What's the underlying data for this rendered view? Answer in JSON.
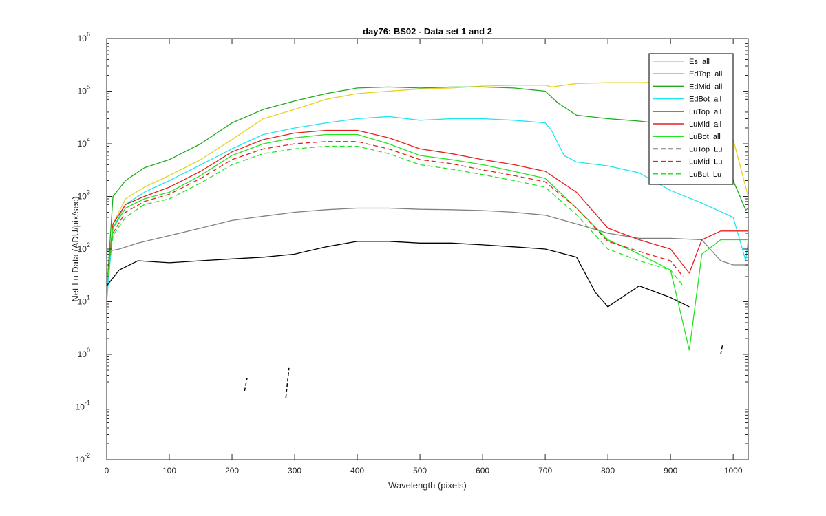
{
  "chart_data": {
    "type": "line",
    "title": "day76: BS02 - Data set 1 and 2",
    "xlabel": "Wavelength (pixels)",
    "ylabel": "Net Lu Data (ADU/pix/sec)",
    "xlim": [
      0,
      1024
    ],
    "ylim": [
      0.01,
      1000000
    ],
    "yscale": "log",
    "grid": false,
    "legend_position": "top-right",
    "x_ticks": [
      "0",
      "100",
      "200",
      "300",
      "400",
      "500",
      "600",
      "700",
      "800",
      "900",
      "1000"
    ],
    "y_ticks": [
      {
        "base": "10",
        "exp": "-2"
      },
      {
        "base": "10",
        "exp": "-1"
      },
      {
        "base": "10",
        "exp": "0"
      },
      {
        "base": "10",
        "exp": "1"
      },
      {
        "base": "10",
        "exp": "2"
      },
      {
        "base": "10",
        "exp": "3"
      },
      {
        "base": "10",
        "exp": "4"
      },
      {
        "base": "10",
        "exp": "5"
      },
      {
        "base": "10",
        "exp": "6"
      }
    ],
    "series": [
      {
        "name": "Es  all",
        "color": "#e6d21f",
        "dash": "solid",
        "x": [
          0,
          10,
          30,
          60,
          100,
          150,
          200,
          250,
          300,
          350,
          400,
          450,
          500,
          550,
          600,
          650,
          700,
          710,
          750,
          800,
          850,
          900,
          950,
          1000,
          1024
        ],
        "y": [
          10,
          300,
          900,
          1500,
          2500,
          5000,
          12000,
          30000,
          45000,
          70000,
          90000,
          100000,
          110000,
          115000,
          125000,
          130000,
          130000,
          120000,
          140000,
          145000,
          145000,
          150000,
          150000,
          12000,
          1000
        ]
      },
      {
        "name": "EdTop  all",
        "color": "#808080",
        "dash": "solid",
        "x": [
          0,
          20,
          50,
          100,
          150,
          200,
          250,
          300,
          350,
          400,
          450,
          500,
          550,
          600,
          650,
          700,
          750,
          800,
          850,
          900,
          950,
          980,
          1000,
          1024
        ],
        "y": [
          90,
          100,
          130,
          180,
          250,
          350,
          420,
          500,
          560,
          600,
          600,
          570,
          560,
          540,
          500,
          440,
          300,
          200,
          160,
          160,
          150,
          60,
          50,
          50
        ]
      },
      {
        "name": "EdMid  all",
        "color": "#1faa1f",
        "dash": "solid",
        "x": [
          0,
          10,
          30,
          60,
          100,
          150,
          200,
          250,
          300,
          350,
          400,
          450,
          500,
          550,
          600,
          650,
          700,
          720,
          750,
          800,
          850,
          900,
          950,
          980,
          1000,
          1020,
          1024
        ],
        "y": [
          15,
          1000,
          2000,
          3500,
          5000,
          10000,
          25000,
          45000,
          65000,
          90000,
          115000,
          120000,
          115000,
          120000,
          120000,
          115000,
          100000,
          60000,
          35000,
          30000,
          27000,
          23000,
          20000,
          8000,
          2000,
          550,
          600
        ]
      },
      {
        "name": "EdBot  all",
        "color": "#1fe6f0",
        "dash": "solid",
        "x": [
          0,
          10,
          30,
          60,
          100,
          150,
          200,
          250,
          300,
          350,
          400,
          450,
          500,
          550,
          600,
          650,
          700,
          710,
          730,
          750,
          800,
          850,
          900,
          950,
          1000,
          1020,
          1024
        ],
        "y": [
          10,
          250,
          700,
          1200,
          2000,
          4000,
          8000,
          15000,
          20000,
          25000,
          30000,
          33000,
          28000,
          30000,
          30000,
          28000,
          25000,
          18000,
          6000,
          4500,
          3800,
          2800,
          1300,
          750,
          400,
          60,
          150
        ]
      },
      {
        "name": "LuTop  all",
        "color": "#000000",
        "dash": "solid",
        "x": [
          0,
          20,
          50,
          100,
          150,
          200,
          250,
          300,
          350,
          400,
          450,
          500,
          550,
          600,
          650,
          700,
          750,
          780,
          800,
          850,
          900,
          930
        ],
        "y": [
          20,
          40,
          60,
          55,
          60,
          65,
          70,
          80,
          110,
          140,
          140,
          130,
          130,
          120,
          110,
          100,
          70,
          15,
          8,
          20,
          12,
          8
        ]
      },
      {
        "name": "LuMid  all",
        "color": "#e61f1f",
        "dash": "solid",
        "x": [
          0,
          10,
          30,
          60,
          100,
          150,
          200,
          250,
          300,
          350,
          400,
          450,
          500,
          550,
          600,
          650,
          700,
          750,
          800,
          850,
          900,
          930,
          950,
          980,
          1024
        ],
        "y": [
          20,
          300,
          700,
          1000,
          1500,
          3000,
          7000,
          12000,
          16000,
          18000,
          18000,
          13000,
          8000,
          6500,
          5000,
          4000,
          3000,
          1200,
          250,
          150,
          100,
          35,
          150,
          220,
          220
        ]
      },
      {
        "name": "LuBot  all",
        "color": "#1fe61f",
        "dash": "solid",
        "x": [
          0,
          10,
          30,
          60,
          100,
          150,
          200,
          250,
          300,
          350,
          400,
          450,
          500,
          550,
          600,
          650,
          700,
          750,
          800,
          850,
          900,
          930,
          950,
          980,
          1024
        ],
        "y": [
          20,
          250,
          600,
          900,
          1200,
          2500,
          6000,
          10000,
          13000,
          15000,
          15000,
          10000,
          6000,
          5000,
          4000,
          3000,
          2200,
          600,
          150,
          80,
          40,
          1.2,
          80,
          150,
          150
        ]
      },
      {
        "name": "LuTop  Lu",
        "color": "#000000",
        "dash": "dashed",
        "x": [
          220,
          224,
          286,
          291,
          980,
          983
        ],
        "y": [
          0.2,
          0.35,
          0.15,
          0.55,
          1.0,
          1.5
        ]
      },
      {
        "name": "LuMid  Lu",
        "color": "#e61f1f",
        "dash": "dashed",
        "x": [
          0,
          10,
          30,
          60,
          100,
          150,
          200,
          250,
          300,
          350,
          400,
          450,
          500,
          550,
          600,
          650,
          700,
          750,
          800,
          850,
          900,
          920
        ],
        "y": [
          20,
          200,
          500,
          800,
          1100,
          2200,
          5000,
          8000,
          10000,
          11000,
          11000,
          8000,
          5000,
          4200,
          3200,
          2500,
          1900,
          600,
          140,
          90,
          60,
          30
        ]
      },
      {
        "name": "LuBot  Lu",
        "color": "#1fe61f",
        "dash": "dashed",
        "x": [
          0,
          10,
          30,
          60,
          100,
          150,
          200,
          250,
          300,
          350,
          400,
          450,
          500,
          550,
          600,
          650,
          700,
          750,
          800,
          850,
          900,
          920
        ],
        "y": [
          20,
          180,
          400,
          700,
          900,
          1800,
          4000,
          6500,
          8000,
          9000,
          9000,
          6500,
          4000,
          3300,
          2600,
          2000,
          1500,
          450,
          100,
          60,
          40,
          20
        ]
      }
    ]
  }
}
